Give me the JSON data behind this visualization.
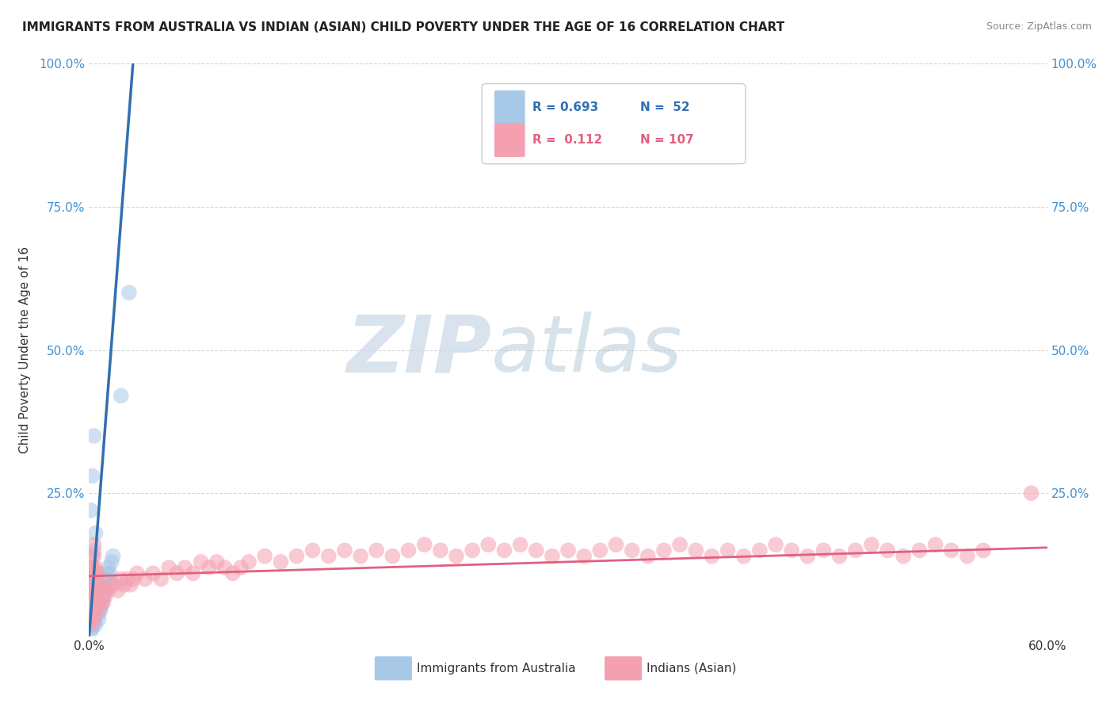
{
  "title": "IMMIGRANTS FROM AUSTRALIA VS INDIAN (ASIAN) CHILD POVERTY UNDER THE AGE OF 16 CORRELATION CHART",
  "source": "Source: ZipAtlas.com",
  "ylabel": "Child Poverty Under the Age of 16",
  "xlim": [
    0,
    0.6
  ],
  "ylim": [
    0,
    1.0
  ],
  "blue_color": "#a8c8e8",
  "blue_line_color": "#3070b0",
  "pink_color": "#f4a0b0",
  "pink_line_color": "#e06080",
  "watermark_zip": "ZIP",
  "watermark_atlas": "atlas",
  "background_color": "#ffffff",
  "blue_scatter_x": [
    0.001,
    0.002,
    0.002,
    0.003,
    0.003,
    0.004,
    0.004,
    0.005,
    0.005,
    0.006,
    0.006,
    0.007,
    0.007,
    0.008,
    0.008,
    0.009,
    0.009,
    0.01,
    0.01,
    0.011,
    0.011,
    0.012,
    0.012,
    0.013,
    0.014,
    0.015,
    0.002,
    0.003,
    0.004,
    0.005,
    0.006,
    0.007,
    0.008,
    0.002,
    0.003,
    0.004,
    0.005,
    0.006,
    0.002,
    0.003,
    0.004,
    0.005,
    0.001,
    0.002,
    0.003,
    0.004,
    0.001,
    0.002,
    0.003,
    0.02,
    0.025
  ],
  "blue_scatter_y": [
    0.01,
    0.02,
    0.03,
    0.03,
    0.04,
    0.04,
    0.05,
    0.05,
    0.06,
    0.04,
    0.06,
    0.05,
    0.07,
    0.06,
    0.08,
    0.07,
    0.09,
    0.08,
    0.1,
    0.09,
    0.11,
    0.1,
    0.12,
    0.11,
    0.13,
    0.14,
    0.015,
    0.025,
    0.035,
    0.045,
    0.055,
    0.045,
    0.055,
    0.02,
    0.03,
    0.02,
    0.04,
    0.03,
    0.06,
    0.07,
    0.06,
    0.08,
    0.1,
    0.12,
    0.15,
    0.18,
    0.22,
    0.28,
    0.35,
    0.42,
    0.6
  ],
  "pink_scatter_x": [
    0.001,
    0.002,
    0.002,
    0.003,
    0.003,
    0.004,
    0.004,
    0.005,
    0.005,
    0.006,
    0.006,
    0.007,
    0.008,
    0.009,
    0.01,
    0.01,
    0.012,
    0.014,
    0.016,
    0.018,
    0.02,
    0.022,
    0.024,
    0.026,
    0.028,
    0.03,
    0.035,
    0.04,
    0.045,
    0.05,
    0.055,
    0.06,
    0.065,
    0.07,
    0.075,
    0.08,
    0.085,
    0.09,
    0.095,
    0.1,
    0.11,
    0.12,
    0.13,
    0.14,
    0.15,
    0.16,
    0.17,
    0.18,
    0.19,
    0.2,
    0.21,
    0.22,
    0.23,
    0.24,
    0.25,
    0.26,
    0.27,
    0.28,
    0.29,
    0.3,
    0.31,
    0.32,
    0.33,
    0.34,
    0.35,
    0.36,
    0.37,
    0.38,
    0.39,
    0.4,
    0.41,
    0.42,
    0.43,
    0.44,
    0.45,
    0.46,
    0.47,
    0.48,
    0.49,
    0.5,
    0.51,
    0.52,
    0.53,
    0.54,
    0.55,
    0.56,
    0.001,
    0.002,
    0.001,
    0.002,
    0.003,
    0.001,
    0.002,
    0.003,
    0.004,
    0.005,
    0.002,
    0.003,
    0.004,
    0.005,
    0.006,
    0.003,
    0.004,
    0.005,
    0.006,
    0.007,
    0.59
  ],
  "pink_scatter_y": [
    0.02,
    0.03,
    0.04,
    0.03,
    0.05,
    0.04,
    0.06,
    0.05,
    0.07,
    0.05,
    0.07,
    0.06,
    0.07,
    0.06,
    0.07,
    0.08,
    0.08,
    0.09,
    0.09,
    0.08,
    0.1,
    0.09,
    0.1,
    0.09,
    0.1,
    0.11,
    0.1,
    0.11,
    0.1,
    0.12,
    0.11,
    0.12,
    0.11,
    0.13,
    0.12,
    0.13,
    0.12,
    0.11,
    0.12,
    0.13,
    0.14,
    0.13,
    0.14,
    0.15,
    0.14,
    0.15,
    0.14,
    0.15,
    0.14,
    0.15,
    0.16,
    0.15,
    0.14,
    0.15,
    0.16,
    0.15,
    0.16,
    0.15,
    0.14,
    0.15,
    0.14,
    0.15,
    0.16,
    0.15,
    0.14,
    0.15,
    0.16,
    0.15,
    0.14,
    0.15,
    0.14,
    0.15,
    0.16,
    0.15,
    0.14,
    0.15,
    0.14,
    0.15,
    0.16,
    0.15,
    0.14,
    0.15,
    0.16,
    0.15,
    0.14,
    0.15,
    0.08,
    0.1,
    0.12,
    0.14,
    0.16,
    0.1,
    0.12,
    0.14,
    0.12,
    0.1,
    0.08,
    0.1,
    0.09,
    0.11,
    0.08,
    0.07,
    0.09,
    0.11,
    0.09,
    0.07,
    0.25
  ],
  "blue_trend_x": [
    0.0,
    0.028
  ],
  "blue_trend_y": [
    0.0,
    1.02
  ],
  "pink_trend_x": [
    0.0,
    0.6
  ],
  "pink_trend_y": [
    0.105,
    0.155
  ],
  "legend_items": [
    {
      "color": "#a8c8e8",
      "text_r": "R = 0.693",
      "text_n": "N =  52",
      "r_color": "#3070b0",
      "n_color": "#3070b0"
    },
    {
      "color": "#f4a0b0",
      "text_r": "R =  0.112",
      "text_n": "N = 107",
      "r_color": "#e06080",
      "n_color": "#e06080"
    }
  ],
  "bottom_legend": [
    {
      "color": "#a8c8e8",
      "label": "Immigrants from Australia"
    },
    {
      "color": "#f4a0b0",
      "label": "Indians (Asian)"
    }
  ]
}
